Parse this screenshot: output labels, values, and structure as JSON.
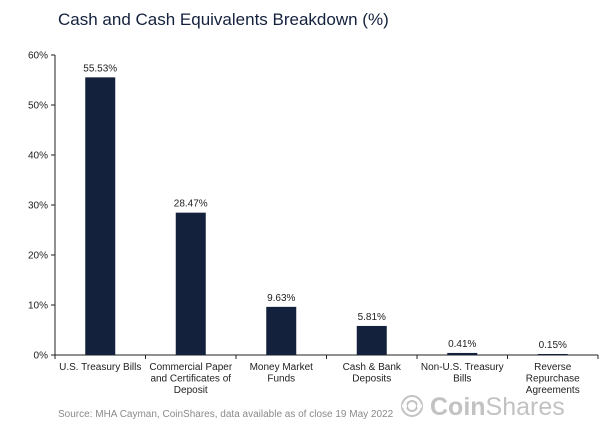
{
  "chart_data": {
    "type": "bar",
    "title": "Cash and Cash Equivalents Breakdown (%)",
    "categories": [
      [
        "U.S. Treasury Bills"
      ],
      [
        "Commercial Paper",
        "and Certificates of",
        "Deposit"
      ],
      [
        "Money Market",
        "Funds"
      ],
      [
        "Cash & Bank",
        "Deposits"
      ],
      [
        "Non-U.S. Treasury",
        "Bills"
      ],
      [
        "Reverse",
        "Repurchase",
        "Agreements"
      ]
    ],
    "values": [
      55.53,
      28.47,
      9.63,
      5.81,
      0.41,
      0.15
    ],
    "data_labels": [
      "55.53%",
      "28.47%",
      "9.63%",
      "5.81%",
      "0.41%",
      "0.15%"
    ],
    "ylim": [
      0,
      60
    ],
    "yticks": [
      {
        "value": 0,
        "label": "0%"
      },
      {
        "value": 10,
        "label": "10%"
      },
      {
        "value": 20,
        "label": "20%"
      },
      {
        "value": 30,
        "label": "30%"
      },
      {
        "value": 40,
        "label": "40%"
      },
      {
        "value": 50,
        "label": "50%"
      },
      {
        "value": 60,
        "label": "60%"
      }
    ],
    "bar_color": "#14213d",
    "grid": false,
    "xlabel": "",
    "ylabel": ""
  },
  "source": "Source: MHA Cayman, CoinShares, data available as of close 19 May 2022",
  "logo": {
    "icon": "coinshares-logo-icon",
    "bold": "Coin",
    "light": "Shares",
    "color": "#c2c2c2"
  }
}
